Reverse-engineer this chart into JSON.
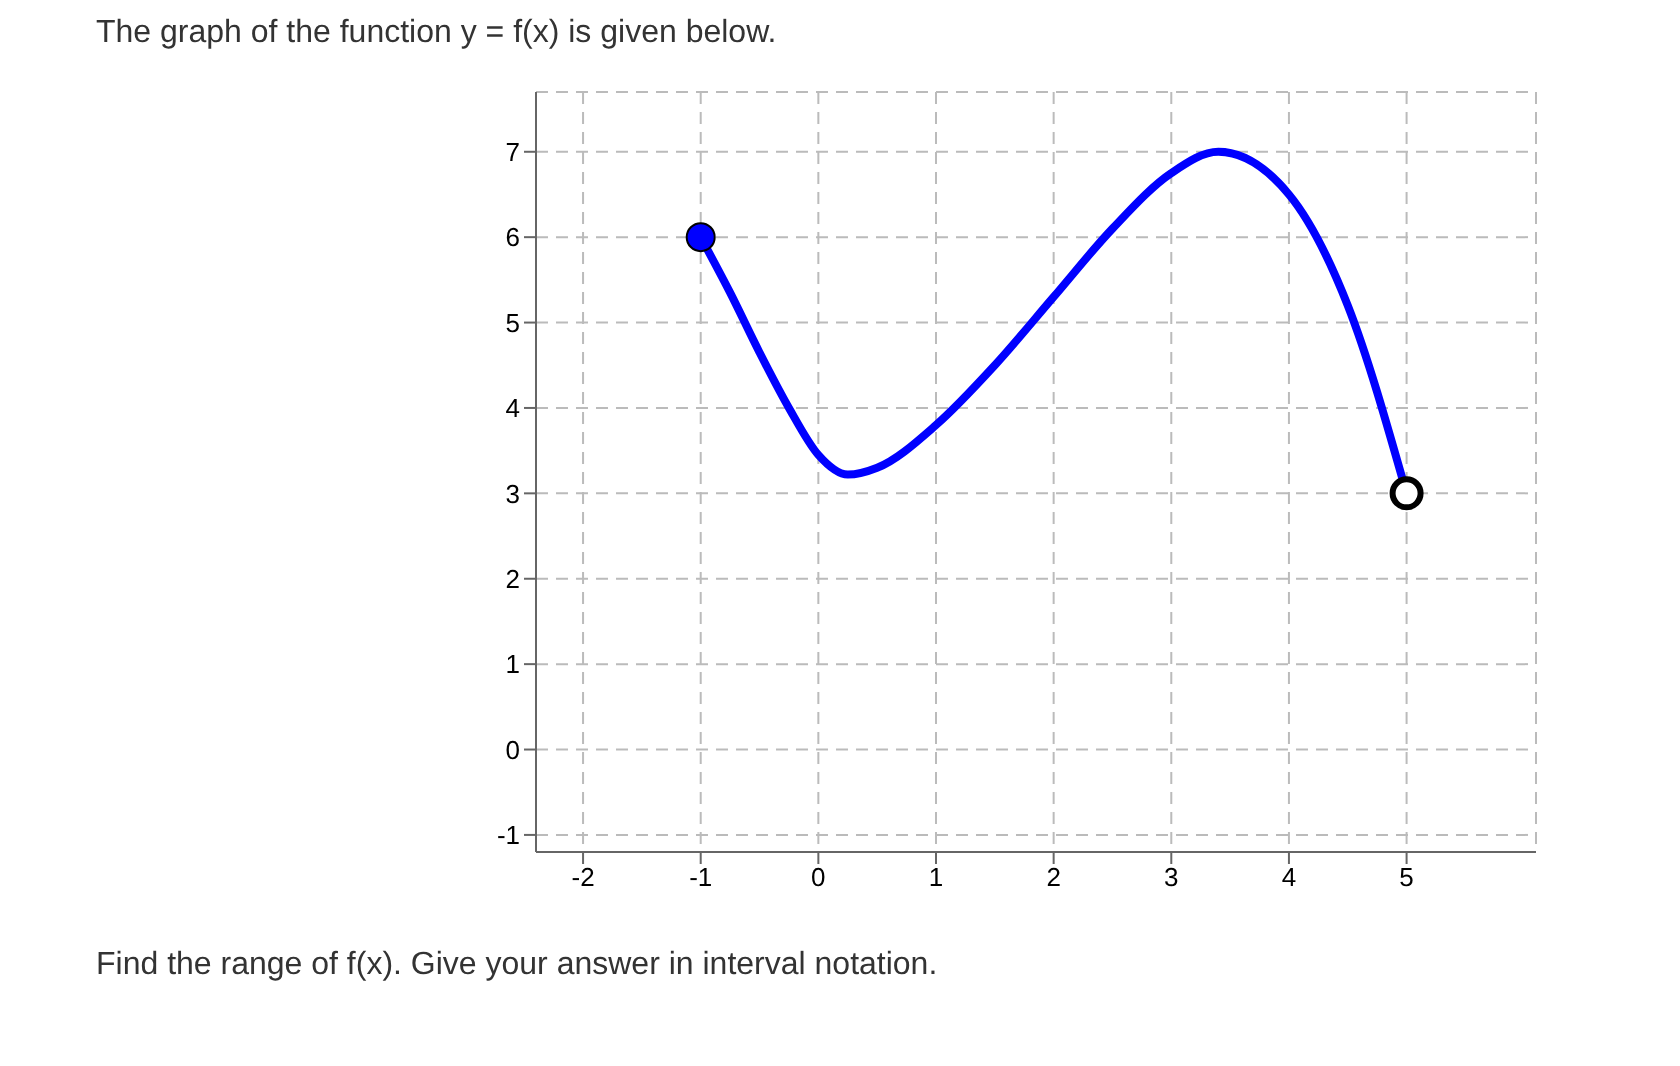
{
  "chart_data": {
    "type": "line",
    "title": "The graph of the function y = f(x) is given below.",
    "annotations": [
      "Find the range of f(x). Give your answer in interval notation."
    ],
    "series": [
      {
        "color": "#0000ff",
        "x": [
          -1,
          -0.75,
          -0.5,
          -0.25,
          0,
          0.25,
          0.5,
          1,
          1.5,
          2,
          2.5,
          3,
          3.4,
          4,
          4.5,
          5
        ],
        "values": [
          6,
          5.35,
          4.65,
          4.0,
          3.45,
          3.22,
          3.3,
          3.8,
          4.5,
          5.3,
          6.1,
          6.75,
          7,
          6.5,
          5.2,
          3
        ]
      },
      {
        "type": "scatter",
        "color": "#0000ff",
        "marker": "circle",
        "x": [
          -1
        ],
        "values": [
          6
        ]
      },
      {
        "type": "scatter",
        "color": "#000000",
        "marker": "circle",
        "x": [
          5
        ],
        "values": [
          3
        ]
      }
    ],
    "xlim": [
      -2.4,
      6.1
    ],
    "ylim": [
      -1.2,
      7.7
    ],
    "xticks": [
      -2,
      -1,
      0,
      1,
      2,
      3,
      4,
      5
    ],
    "yticks": [
      -1,
      0,
      1,
      2,
      3,
      4,
      5,
      6,
      7
    ],
    "grid": true
  }
}
